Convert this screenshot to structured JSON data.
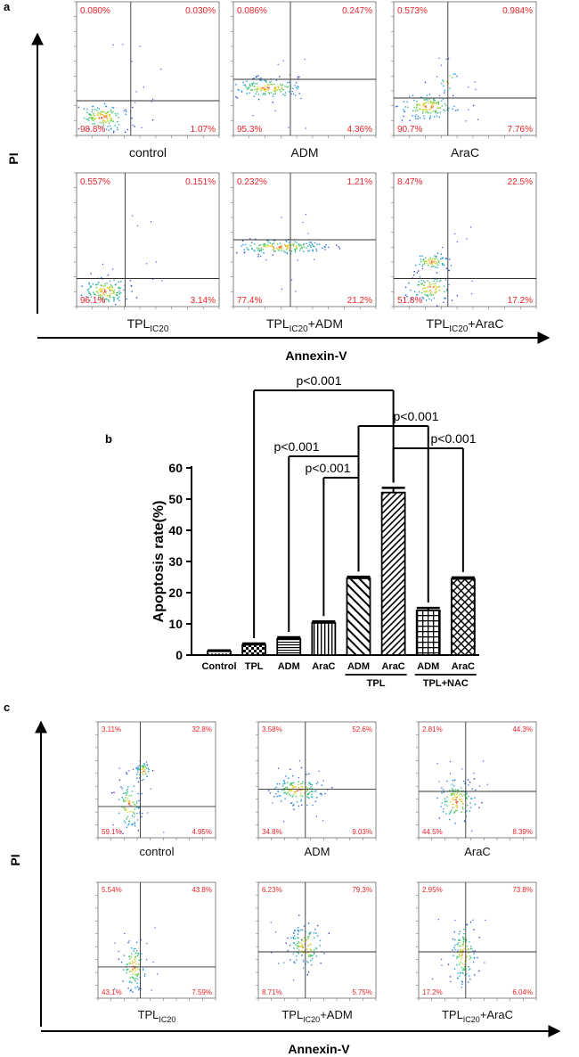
{
  "panel_a": {
    "label": "a",
    "y_axis": "PI",
    "x_axis": "Annexin-V",
    "plots": [
      {
        "cond": "control",
        "sub": "",
        "suffix": "",
        "ul": "0.080%",
        "ur": "0.030%",
        "ll": "98.8%",
        "lr": "1.07%"
      },
      {
        "cond": "ADM",
        "sub": "",
        "suffix": "",
        "ul": "0.086%",
        "ur": "0.247%",
        "ll": "95.3%",
        "lr": "4.36%"
      },
      {
        "cond": "AraC",
        "sub": "",
        "suffix": "",
        "ul": "0.573%",
        "ur": "0.984%",
        "ll": "90.7%",
        "lr": "7.76%"
      },
      {
        "cond": "TPL",
        "sub": "IC20",
        "suffix": "",
        "ul": "0.557%",
        "ur": "0.151%",
        "ll": "96.1%",
        "lr": "3.14%"
      },
      {
        "cond": "TPL",
        "sub": "IC20",
        "suffix": "+ADM",
        "ul": "0.232%",
        "ur": "1.21%",
        "ll": "77.4%",
        "lr": "21.2%"
      },
      {
        "cond": "TPL",
        "sub": "IC20",
        "suffix": "+AraC",
        "ul": "8.47%",
        "ur": "22.5%",
        "ll": "51.8%",
        "lr": "17.2%"
      }
    ]
  },
  "panel_b": {
    "label": "b",
    "chart_data": {
      "type": "bar",
      "categories": [
        "Control",
        "TPL",
        "ADM",
        "AraC",
        "ADM",
        "AraC",
        "ADM",
        "AraC"
      ],
      "values": [
        1.2,
        3.3,
        5.2,
        10.3,
        24.6,
        52.1,
        14.3,
        24.4
      ],
      "errors": [
        0.3,
        0.4,
        0.5,
        0.5,
        0.5,
        1.5,
        0.8,
        0.5
      ],
      "patterns": [
        "dots",
        "checker",
        "hlines",
        "vlines",
        "diag",
        "diagdense",
        "grid",
        "crosshatch"
      ],
      "group_labels": [
        "TPL",
        "TPL+NAC"
      ],
      "ylabel": "Apoptosis rate(%)",
      "ylim": [
        0,
        60
      ],
      "yticks": [
        "0",
        "10",
        "20",
        "30",
        "40",
        "50",
        "60"
      ],
      "pvalue_text": [
        "p<0.001",
        "p<0.001",
        "p<0.001",
        "p<0.001",
        "p<0.001"
      ]
    }
  },
  "panel_c": {
    "label": "c",
    "y_axis": "PI",
    "x_axis": "Annexin-V",
    "plots": [
      {
        "cond": "control",
        "sub": "",
        "suffix": "",
        "ul": "3.11%",
        "ur": "32.8%",
        "ll": "59.1%",
        "lr": "4.95%"
      },
      {
        "cond": "ADM",
        "sub": "",
        "suffix": "",
        "ul": "3.58%",
        "ur": "52.6%",
        "ll": "34.8%",
        "lr": "9.03%"
      },
      {
        "cond": "AraC",
        "sub": "",
        "suffix": "",
        "ul": "2.81%",
        "ur": "44.3%",
        "ll": "44.5%",
        "lr": "8.39%"
      },
      {
        "cond": "TPL",
        "sub": "IC20",
        "suffix": "",
        "ul": "5.54%",
        "ur": "43.8%",
        "ll": "43.1%",
        "lr": "7.59%"
      },
      {
        "cond": "TPL",
        "sub": "IC20",
        "suffix": "+ADM",
        "ul": "6.23%",
        "ur": "79.3%",
        "ll": "8.71%",
        "lr": "5.75%"
      },
      {
        "cond": "TPL",
        "sub": "IC20",
        "suffix": "+AraC",
        "ul": "2.95%",
        "ur": "73.8%",
        "ll": "17.2%",
        "lr": "6.04%"
      }
    ]
  }
}
